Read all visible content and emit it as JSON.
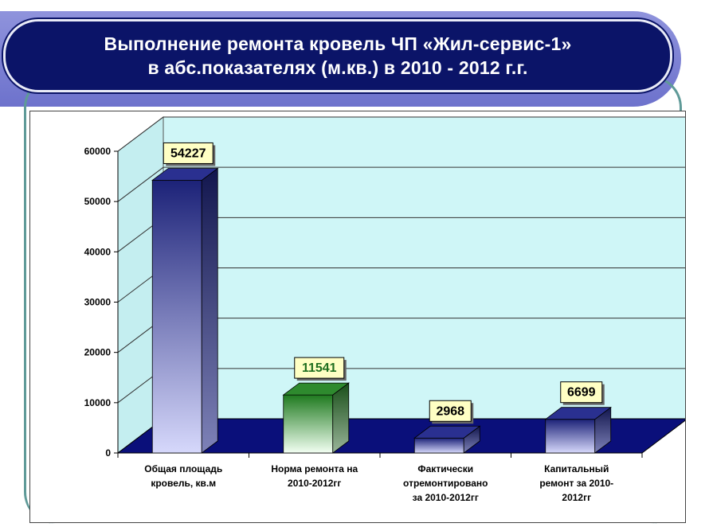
{
  "title": {
    "line1": "Выполнение ремонта кровель ЧП «Жил-сервис-1»",
    "line2": "в абс.показателях (м.кв.) в 2010 - 2012 г.г."
  },
  "colors": {
    "title_bg": "#0b1468",
    "wall": "#cff6f7",
    "floor": "#0a0f7a",
    "bar_blue_top": "#1c2278",
    "bar_blue_bottom": "#d6d8fb",
    "bar_green_top": "#1f7a1f",
    "bar_green_bottom": "#f2fff2",
    "label_box": "#ffffc4"
  },
  "chart_data": {
    "type": "bar",
    "title": "",
    "xlabel": "",
    "ylabel": "",
    "ylim": [
      0,
      60000
    ],
    "yticks": [
      0,
      10000,
      20000,
      30000,
      40000,
      50000,
      60000
    ],
    "grid": true,
    "legend": "none",
    "categories": [
      [
        "Общая площадь",
        "кровель, кв.м"
      ],
      [
        "Норма ремонта на",
        "2010-2012гг"
      ],
      [
        "Фактически",
        "отремонтировано",
        "за 2010-2012гг"
      ],
      [
        "Капитальный",
        "ремонт за 2010-",
        "2012гг"
      ]
    ],
    "values": [
      54227,
      11541,
      2968,
      6699
    ],
    "bar_styles": [
      "blue",
      "green",
      "blue",
      "blue"
    ],
    "label_colors": [
      "#000000",
      "#1f6e1f",
      "#000000",
      "#000000"
    ]
  }
}
